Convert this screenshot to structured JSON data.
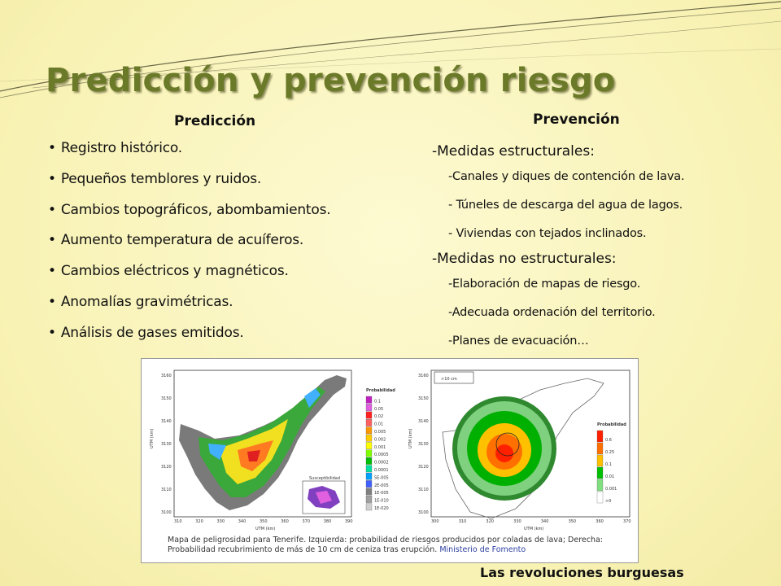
{
  "slide": {
    "title": "Predicción y prevención riesgo",
    "footer": "Las revoluciones burguesas"
  },
  "prediccion": {
    "heading": "Predicción",
    "items": [
      "Registro histórico.",
      "Pequeños temblores y ruidos.",
      "Cambios topográficos, abombamientos.",
      "Aumento temperatura de acuíferos.",
      "Cambios eléctricos y magnéticos.",
      "Anomalías gravimétricas.",
      "Análisis de gases emitidos."
    ]
  },
  "prevencion": {
    "heading": "Prevención",
    "estructurales": {
      "label": "-Medidas estructurales:",
      "items": [
        "-Canales y diques de contención de lava.",
        "- Túneles de descarga del agua de lagos.",
        "- Viviendas con tejados inclinados."
      ]
    },
    "no_estructurales": {
      "label": "-Medidas no estructurales:",
      "items": [
        "-Elaboración de mapas de riesgo.",
        "-Adecuada ordenación del territorio.",
        "-Planes de evacuación…"
      ]
    }
  },
  "figure": {
    "caption_line1": "Mapa de peligrosidad para Tenerife. Izquierda: probabilidad de riesgos producidos por coladas de lava; Derecha:",
    "caption_line2": "Probabilidad recubrimiento de más de 10 cm de ceniza tras erupción.",
    "caption_source": "Ministerio de Fomento",
    "left_map": {
      "legend_title": "Probabilidad",
      "legend_values": [
        "0.1",
        "0.05",
        "0.02",
        "0.01",
        "0.005",
        "0.002",
        "0.001",
        "0.0005",
        "0.0002",
        "0.0001",
        "5E-005",
        "2E-005",
        "1E-005",
        "1E-010",
        "1E-020"
      ],
      "legend_colors": [
        "#c020c0",
        "#e060e0",
        "#ff2020",
        "#ff6060",
        "#ff9900",
        "#ffcc00",
        "#ffff00",
        "#80ff00",
        "#00c000",
        "#00e0a0",
        "#00a0ff",
        "#4060ff",
        "#808080",
        "#a0a0a0",
        "#d0d0d0"
      ],
      "inset_label": "Susceptibilidad",
      "ylabel": "UTM (km)",
      "xlabel": "UTM (km)",
      "y_ticks": [
        "3160",
        "3150",
        "3140",
        "3130",
        "3120",
        "3110",
        "3100"
      ],
      "x_ticks": [
        "310",
        "320",
        "330",
        "340",
        "350",
        "360",
        "370",
        "380",
        "390"
      ]
    },
    "right_map": {
      "box_label": ">10 cm",
      "legend_title": "Probabilidad",
      "legend_values": [
        "0.6",
        "0.25",
        "0.1",
        "0.01",
        "0.001",
        ">0"
      ],
      "legend_colors": [
        "#ff2000",
        "#ff7000",
        "#ffc000",
        "#00c000",
        "#80e080",
        "#ffffff"
      ],
      "ylabel": "UTM (km)",
      "xlabel": "UTM (km)",
      "y_ticks": [
        "3160",
        "3150",
        "3140",
        "3130",
        "3120",
        "3110",
        "3100"
      ],
      "x_ticks": [
        "300",
        "310",
        "320",
        "330",
        "340",
        "350",
        "360",
        "370"
      ]
    }
  }
}
